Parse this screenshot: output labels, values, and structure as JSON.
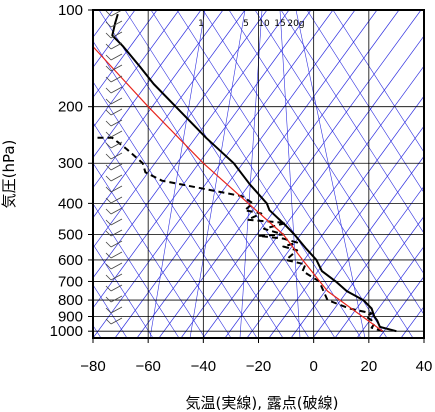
{
  "chart_data": {
    "type": "line",
    "title": "",
    "xlabel": "気温(実線), 露点(破線)",
    "ylabel": "気圧(hPa)",
    "xlim": [
      -80,
      40
    ],
    "ylim": [
      1050,
      100
    ],
    "yscale": "log",
    "grid": true,
    "x_ticks": [
      "−80",
      "−60",
      "−40",
      "−20",
      "0",
      "20",
      "40"
    ],
    "x_tick_values": [
      -80,
      -60,
      -40,
      -20,
      0,
      20,
      40
    ],
    "y_ticks": [
      "100",
      "200",
      "300",
      "400",
      "500",
      "600",
      "700",
      "800",
      "900",
      "1000"
    ],
    "y_tick_values": [
      100,
      200,
      300,
      400,
      500,
      600,
      700,
      800,
      900,
      1000
    ],
    "mixing_ratio_labels": [
      "1",
      "5",
      "10",
      "15",
      "20g"
    ],
    "series": [
      {
        "role": "temperature",
        "style": "solid",
        "color": "#000000",
        "points": [
          [
            30,
            1000
          ],
          [
            24,
            970
          ],
          [
            23,
            925
          ],
          [
            22,
            900
          ],
          [
            21,
            850
          ],
          [
            18,
            800
          ],
          [
            12,
            750
          ],
          [
            8,
            700
          ],
          [
            3,
            650
          ],
          [
            1,
            600
          ],
          [
            -3,
            550
          ],
          [
            -7,
            500
          ],
          [
            -10,
            470
          ],
          [
            -16,
            420
          ],
          [
            -17,
            400
          ],
          [
            -23,
            350
          ],
          [
            -29,
            300
          ],
          [
            -39,
            250
          ],
          [
            -50,
            200
          ],
          [
            -58,
            170
          ],
          [
            -63,
            150
          ],
          [
            -69,
            130
          ],
          [
            -73,
            120
          ],
          [
            -72,
            110
          ],
          [
            -71,
            103
          ]
        ]
      },
      {
        "role": "dewpoint",
        "style": "dashed",
        "color": "#000000",
        "points": [
          [
            25,
            1000
          ],
          [
            21,
            975
          ],
          [
            22,
            950
          ],
          [
            21,
            925
          ],
          [
            19,
            900
          ],
          [
            21,
            880
          ],
          [
            13,
            850
          ],
          [
            5,
            800
          ],
          [
            2,
            700
          ],
          [
            -4,
            650
          ],
          [
            -3,
            620
          ],
          [
            -10,
            600
          ],
          [
            -6,
            560
          ],
          [
            -11,
            545
          ],
          [
            -6,
            530
          ],
          [
            -11,
            515
          ],
          [
            -20,
            505
          ],
          [
            -11,
            500
          ],
          [
            -18,
            480
          ],
          [
            -10,
            460
          ],
          [
            -24,
            450
          ],
          [
            -19,
            430
          ],
          [
            -25,
            420
          ],
          [
            -22,
            400
          ],
          [
            -26,
            380
          ],
          [
            -40,
            360
          ],
          [
            -55,
            340
          ],
          [
            -61,
            320
          ],
          [
            -62,
            300
          ],
          [
            -68,
            270
          ],
          [
            -73,
            250
          ],
          [
            -80,
            250
          ]
        ]
      },
      {
        "role": "reference_red",
        "style": "solid",
        "color": "#e8261e",
        "points": [
          [
            25,
            1000
          ],
          [
            5,
            750
          ],
          [
            -4,
            600
          ],
          [
            -11,
            500
          ],
          [
            -40,
            300
          ],
          [
            -60,
            200
          ],
          [
            -80,
            130
          ]
        ]
      }
    ],
    "colors": {
      "isotherm_grid": "#3030e0",
      "frame": "#000000",
      "reference_line": "#e8261e"
    }
  }
}
